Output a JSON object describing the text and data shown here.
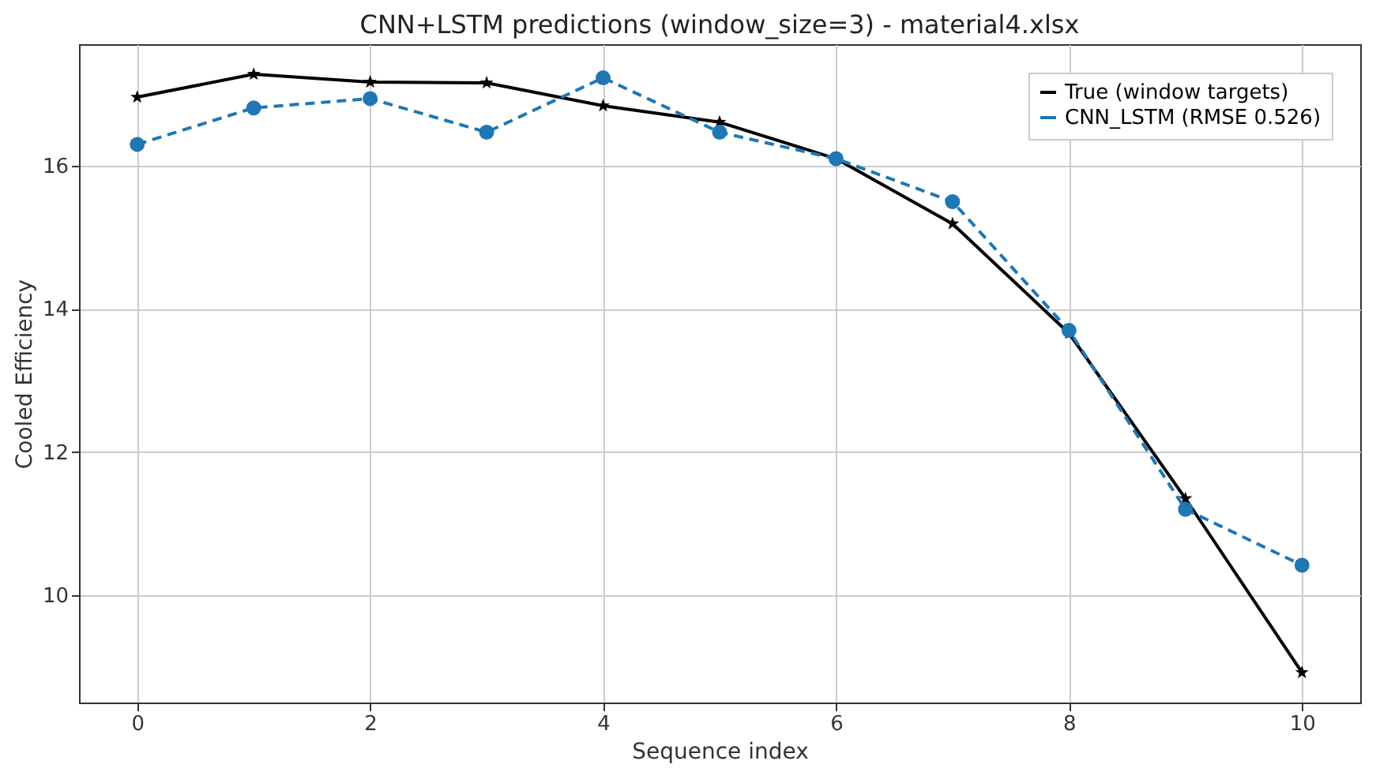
{
  "chart_data": {
    "type": "line",
    "title": "CNN+LSTM predictions (window_size=3) - material4.xlsx",
    "xlabel": "Sequence index",
    "ylabel": "Cooled Efficiency",
    "x": [
      0,
      1,
      2,
      3,
      4,
      5,
      6,
      7,
      8,
      9,
      10
    ],
    "series": [
      {
        "name": "True (window targets)",
        "color": "#000000",
        "marker": "star",
        "line_style": "solid",
        "values": [
          16.96,
          17.28,
          17.17,
          17.16,
          16.84,
          16.61,
          16.1,
          15.19,
          13.66,
          11.35,
          8.92
        ]
      },
      {
        "name": "CNN_LSTM (RMSE 0.526)",
        "color": "#1f77b4",
        "marker": "circle",
        "line_style": "dashed",
        "values": [
          16.3,
          16.81,
          16.94,
          16.47,
          17.23,
          16.47,
          16.1,
          15.5,
          13.7,
          11.2,
          10.42
        ]
      }
    ],
    "xlim": [
      -0.5,
      10.5
    ],
    "xticks": [
      0,
      2,
      4,
      6,
      8,
      10
    ],
    "ylim": [
      8.5,
      17.7
    ],
    "yticks": [
      10,
      12,
      14,
      16
    ],
    "grid": true,
    "legend": "top right"
  }
}
